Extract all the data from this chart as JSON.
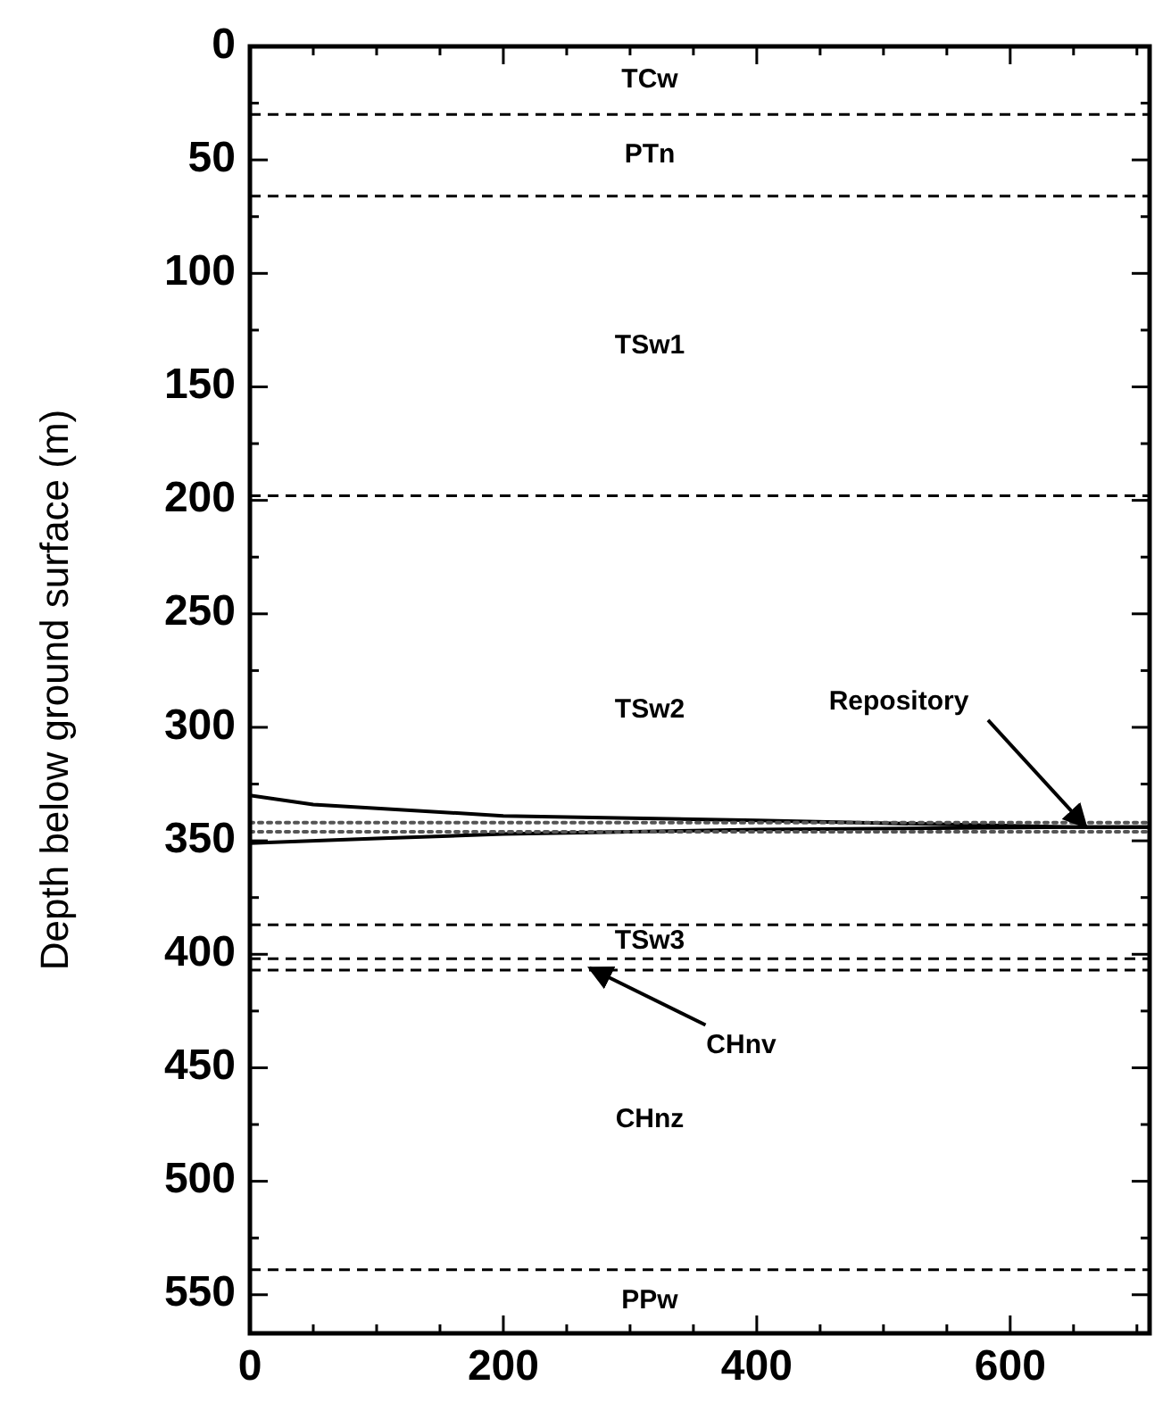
{
  "chart_data": {
    "type": "line",
    "ylabel": "Depth below ground surface (m)",
    "xlim": [
      0,
      710
    ],
    "ylim": [
      567,
      0
    ],
    "xticks": [
      0,
      {
        "value": 50,
        "label": null
      },
      {
        "value": 100,
        "label": null
      },
      {
        "value": 150,
        "label": null
      },
      200,
      {
        "value": 250,
        "label": null
      },
      {
        "value": 300,
        "label": null
      },
      {
        "value": 350,
        "label": null
      },
      400,
      {
        "value": 450,
        "label": null
      },
      {
        "value": 500,
        "label": null
      },
      {
        "value": 550,
        "label": null
      },
      600,
      {
        "value": 650,
        "label": null
      },
      {
        "value": 700,
        "label": null
      }
    ],
    "yticks": [
      0,
      {
        "value": 25,
        "label": null
      },
      50,
      {
        "value": 75,
        "label": null
      },
      100,
      {
        "value": 125,
        "label": null
      },
      150,
      {
        "value": 175,
        "label": null
      },
      200,
      {
        "value": 225,
        "label": null
      },
      250,
      {
        "value": 275,
        "label": null
      },
      300,
      {
        "value": 325,
        "label": null
      },
      350,
      {
        "value": 375,
        "label": null
      },
      400,
      {
        "value": 425,
        "label": null
      },
      450,
      {
        "value": 475,
        "label": null
      },
      500,
      {
        "value": 525,
        "label": null
      },
      550
    ],
    "grid": false,
    "series": [
      {
        "color": "#000000",
        "line_style": "solid",
        "x": [
          0,
          50,
          200,
          400,
          650,
          710
        ],
        "values": [
          330,
          334,
          339,
          341,
          344,
          344
        ]
      },
      {
        "color": "#000000",
        "line_style": "solid",
        "x": [
          0,
          100,
          200,
          400,
          650,
          710
        ],
        "values": [
          351,
          349,
          347,
          345,
          344,
          344
        ]
      },
      {
        "color": "#555555",
        "line_style": "dotted",
        "x": [
          0,
          710
        ],
        "values": [
          342,
          342
        ]
      },
      {
        "color": "#555555",
        "line_style": "dotted",
        "x": [
          0,
          710
        ],
        "values": [
          346,
          346
        ]
      }
    ],
    "ref_lines": [
      {
        "axis": "y",
        "value": 30,
        "line_style": "dashed"
      },
      {
        "axis": "y",
        "value": 66,
        "line_style": "dashed"
      },
      {
        "axis": "y",
        "value": 198,
        "line_style": "dashed"
      },
      {
        "axis": "y",
        "value": 387,
        "line_style": "dashed"
      },
      {
        "axis": "y",
        "value": 402,
        "line_style": "dashed"
      },
      {
        "axis": "y",
        "value": 407,
        "line_style": "dashed"
      },
      {
        "axis": "y",
        "value": 539,
        "line_style": "dashed"
      }
    ],
    "annotations": [
      "TCw",
      "PTn",
      "TSw1",
      "TSw2",
      "TSw3",
      "CHnz",
      "PPw",
      {
        "text": "Repository",
        "x": 660,
        "y": 344
      },
      {
        "text": "CHnv",
        "x": 268,
        "y": 406
      }
    ]
  }
}
